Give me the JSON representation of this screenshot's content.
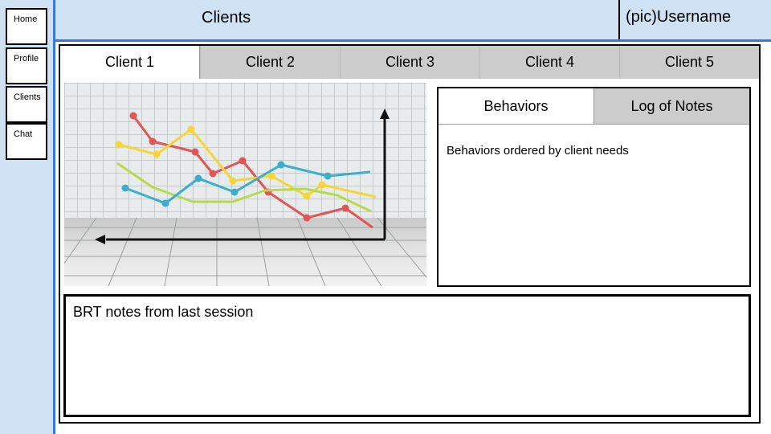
{
  "sidebar": {
    "items": [
      {
        "label": "Home"
      },
      {
        "label": "Profile"
      },
      {
        "label": "Clients"
      },
      {
        "label": "Chat"
      }
    ]
  },
  "header": {
    "title": "Clients",
    "user": "(pic)Username"
  },
  "client_tabs": [
    {
      "label": "Client 1",
      "active": true
    },
    {
      "label": "Client 2",
      "active": false
    },
    {
      "label": "Client 3",
      "active": false
    },
    {
      "label": "Client 4",
      "active": false
    },
    {
      "label": "Client 5",
      "active": false
    }
  ],
  "chart_image": {
    "series_colors": [
      "#e05555",
      "#f4d63a",
      "#b8d94a",
      "#3aaecb"
    ],
    "axis_color": "#111111"
  },
  "behaviors_panel": {
    "tabs": [
      {
        "label": "Behaviors",
        "active": true
      },
      {
        "label": "Log of Notes",
        "active": false
      }
    ],
    "body_text": "Behaviors ordered by client needs"
  },
  "notes": {
    "text": "BRT notes from last session"
  }
}
